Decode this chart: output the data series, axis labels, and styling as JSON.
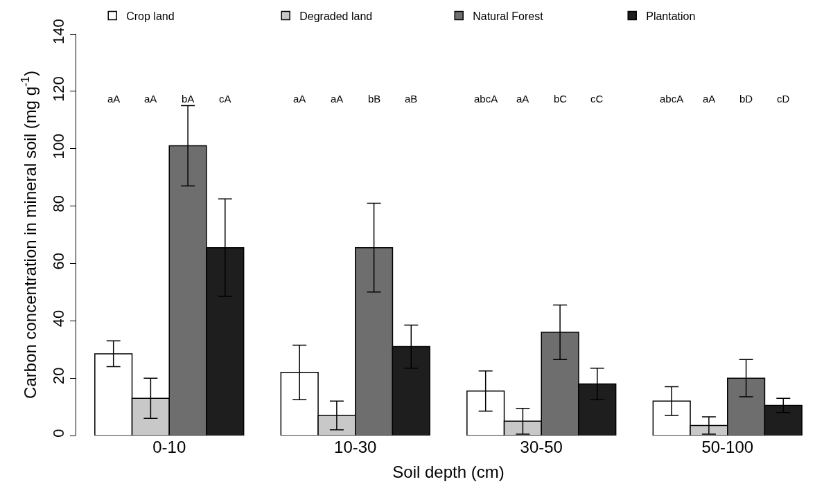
{
  "chart_data": {
    "type": "bar",
    "xlabel": "Soil depth (cm)",
    "ylabel": "Carbon concentration in mineral soil (mg g$^{-1}$)",
    "categories": [
      "0-10",
      "10-30",
      "30-50",
      "50-100"
    ],
    "series": [
      {
        "name": "Crop land",
        "color": "#ffffff",
        "values": [
          28.5,
          22,
          15.5,
          12
        ],
        "errors": [
          4.5,
          9.5,
          7,
          5
        ]
      },
      {
        "name": "Degraded land",
        "color": "#c8c8c8",
        "values": [
          13,
          7,
          5,
          3.5
        ],
        "errors": [
          7,
          5,
          4.5,
          3
        ]
      },
      {
        "name": "Natural Forest",
        "color": "#6e6e6e",
        "values": [
          101,
          65.5,
          36,
          20
        ],
        "errors": [
          14,
          15.5,
          9.5,
          6.5
        ]
      },
      {
        "name": "Plantation",
        "color": "#1e1e1e",
        "values": [
          65.5,
          31,
          18,
          10.5
        ],
        "errors": [
          17,
          7.5,
          5.5,
          2.5
        ]
      }
    ],
    "ylim": [
      0,
      140
    ],
    "yticks": [
      0,
      20,
      40,
      60,
      80,
      100,
      120,
      140
    ],
    "grid": false,
    "legend": "top",
    "annotations": [
      "aA",
      "aA",
      "bA",
      "cA",
      "aA",
      "aA",
      "bB",
      "aB",
      "abcA",
      "aA",
      "bC",
      "cC",
      "abcA",
      "aA",
      "bD",
      "cD"
    ]
  }
}
